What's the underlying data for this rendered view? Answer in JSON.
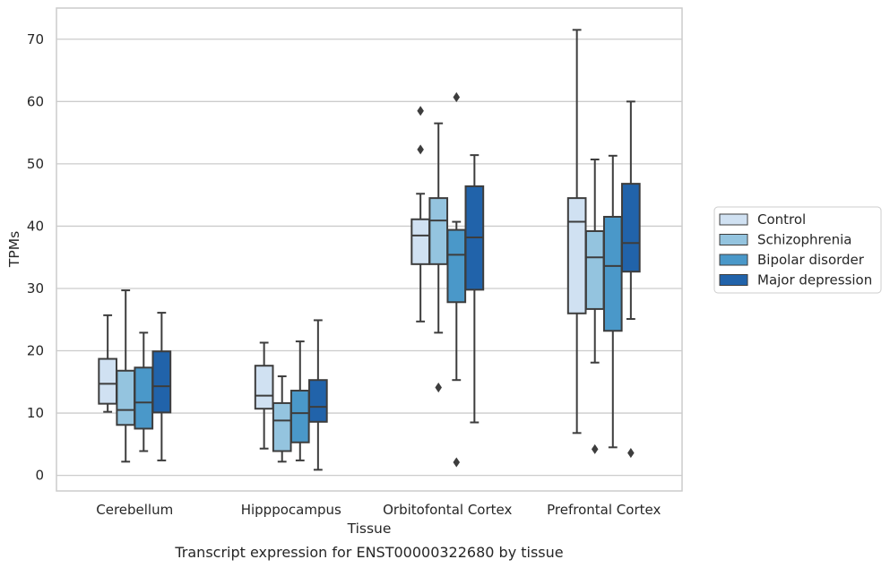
{
  "chart_data": {
    "type": "boxplot",
    "title": "",
    "caption": "Transcript expression for ENST00000322680 by tissue",
    "xlabel": "Tissue",
    "ylabel": "TPMs",
    "ylim": [
      -2.5,
      75
    ],
    "yticks": [
      0,
      10,
      20,
      30,
      40,
      50,
      60,
      70
    ],
    "grid": "horizontal",
    "legend_position": "right",
    "categories": [
      "Cerebellum",
      "Hipppocampus",
      "Orbitofontal Cortex",
      "Prefrontal Cortex"
    ],
    "series": [
      {
        "name": "Control",
        "color": "#d0e1f2",
        "boxes": [
          {
            "whisker_low": 10.2,
            "q1": 11.5,
            "median": 14.7,
            "q3": 18.7,
            "whisker_high": 25.7,
            "outliers": []
          },
          {
            "whisker_low": 4.3,
            "q1": 10.7,
            "median": 12.8,
            "q3": 17.6,
            "whisker_high": 21.3,
            "outliers": []
          },
          {
            "whisker_low": 24.7,
            "q1": 33.9,
            "median": 38.5,
            "q3": 41.1,
            "whisker_high": 45.2,
            "outliers": [
              52.3,
              58.5
            ]
          },
          {
            "whisker_low": 6.8,
            "q1": 26.0,
            "median": 40.7,
            "q3": 44.5,
            "whisker_high": 71.5,
            "outliers": []
          }
        ]
      },
      {
        "name": "Schizophrenia",
        "color": "#94c4df",
        "boxes": [
          {
            "whisker_low": 2.2,
            "q1": 8.1,
            "median": 10.5,
            "q3": 16.8,
            "whisker_high": 29.7,
            "outliers": []
          },
          {
            "whisker_low": 2.2,
            "q1": 3.9,
            "median": 8.8,
            "q3": 11.6,
            "whisker_high": 15.9,
            "outliers": []
          },
          {
            "whisker_low": 22.9,
            "q1": 33.9,
            "median": 40.9,
            "q3": 44.5,
            "whisker_high": 56.5,
            "outliers": [
              14.1
            ]
          },
          {
            "whisker_low": 18.1,
            "q1": 26.7,
            "median": 35.0,
            "q3": 39.2,
            "whisker_high": 50.7,
            "outliers": [
              4.2
            ]
          }
        ]
      },
      {
        "name": "Bipolar disorder",
        "color": "#4a98c9",
        "boxes": [
          {
            "whisker_low": 3.9,
            "q1": 7.5,
            "median": 11.7,
            "q3": 17.3,
            "whisker_high": 22.9,
            "outliers": []
          },
          {
            "whisker_low": 2.4,
            "q1": 5.3,
            "median": 10.0,
            "q3": 13.6,
            "whisker_high": 21.5,
            "outliers": []
          },
          {
            "whisker_low": 15.3,
            "q1": 27.8,
            "median": 35.4,
            "q3": 39.4,
            "whisker_high": 40.7,
            "outliers": [
              2.1,
              60.7
            ]
          },
          {
            "whisker_low": 4.5,
            "q1": 23.2,
            "median": 33.6,
            "q3": 41.5,
            "whisker_high": 51.3,
            "outliers": []
          }
        ]
      },
      {
        "name": "Major depression",
        "color": "#2163aa",
        "boxes": [
          {
            "whisker_low": 2.4,
            "q1": 10.1,
            "median": 14.3,
            "q3": 19.9,
            "whisker_high": 26.1,
            "outliers": []
          },
          {
            "whisker_low": 0.9,
            "q1": 8.6,
            "median": 11.0,
            "q3": 15.3,
            "whisker_high": 24.9,
            "outliers": []
          },
          {
            "whisker_low": 8.5,
            "q1": 29.8,
            "median": 38.2,
            "q3": 46.4,
            "whisker_high": 51.4,
            "outliers": []
          },
          {
            "whisker_low": 25.1,
            "q1": 32.7,
            "median": 37.3,
            "q3": 46.8,
            "whisker_high": 60.0,
            "outliers": [
              3.6
            ]
          }
        ]
      }
    ]
  }
}
